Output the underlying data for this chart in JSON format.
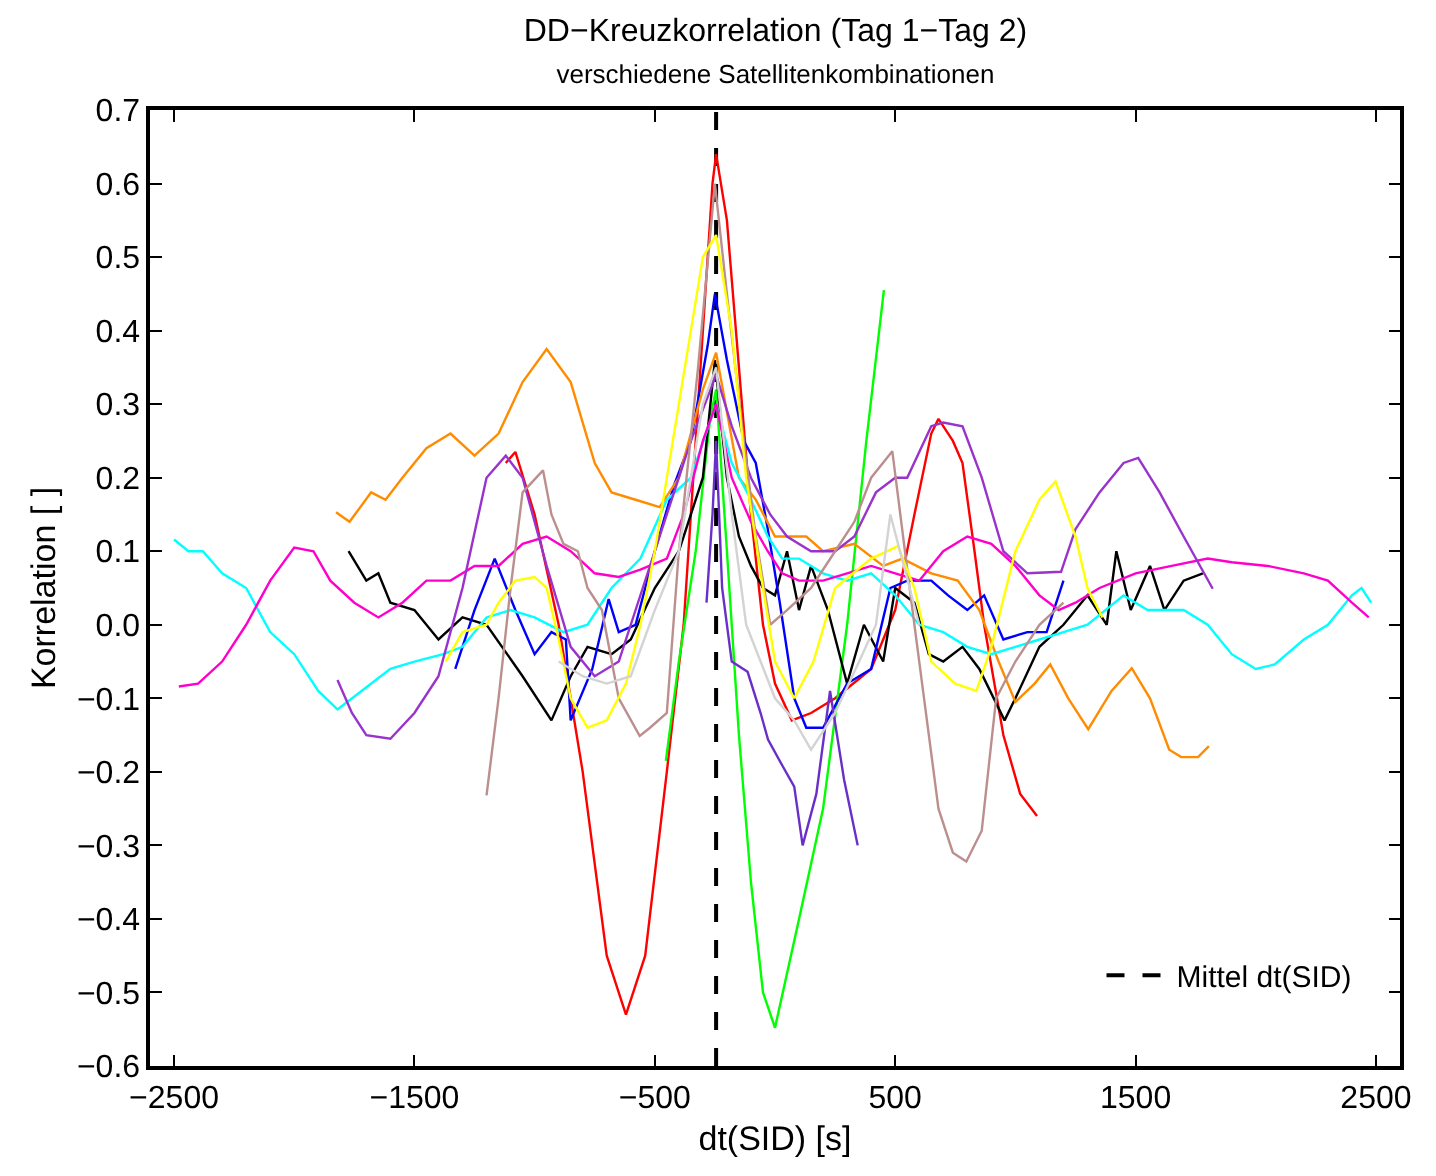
{
  "chart_data": {
    "type": "line",
    "title": "DD−Kreuzkorrelation (Tag 1−Tag 2)",
    "subtitle": "verschiedene Satellitenkombinationen",
    "xlabel": "dt(SID) [s]",
    "ylabel": "Korrelation [ ]",
    "xlim": [
      -2600,
      2600
    ],
    "ylim": [
      -0.6,
      0.7
    ],
    "xticks": [
      {
        "value": -2500,
        "label": "−2500"
      },
      {
        "value": -1500,
        "label": "−1500"
      },
      {
        "value": -500,
        "label": "−500"
      },
      500,
      1500,
      2500
    ],
    "yticks": [
      {
        "value": -0.6,
        "label": "−0.6"
      },
      {
        "value": -0.5,
        "label": "−0.5"
      },
      {
        "value": -0.4,
        "label": "−0.4"
      },
      {
        "value": -0.3,
        "label": "−0.3"
      },
      {
        "value": -0.2,
        "label": "−0.2"
      },
      {
        "value": -0.1,
        "label": "−0.1"
      },
      {
        "value": 0,
        "label": "0.0"
      },
      0.1,
      0.2,
      0.3,
      0.4,
      0.5,
      0.6,
      0.7
    ],
    "legend": "bottom right",
    "marker": "none",
    "line_style": "solid",
    "ref_lines": [
      {
        "axis": "x",
        "value": -245,
        "label": "Mittel dt(SID)",
        "color": "#000000",
        "line_style": "dashed"
      }
    ],
    "series": [
      {
        "color": "#ff0000",
        "x": [
          -1120,
          -1080,
          -1000,
          -900,
          -800,
          -700,
          -620,
          -540,
          -450,
          -380,
          -320,
          -260,
          -245,
          -200,
          -150,
          -100,
          -50,
          0,
          70,
          150,
          250,
          400,
          500,
          580,
          650,
          680,
          740,
          780,
          830,
          870,
          950,
          1020,
          1090
        ],
        "values": [
          0.22,
          0.235,
          0.15,
          0.0,
          -0.2,
          -0.45,
          -0.53,
          -0.45,
          -0.2,
          0.0,
          0.3,
          0.6,
          0.64,
          0.55,
          0.35,
          0.15,
          0.0,
          -0.08,
          -0.13,
          -0.12,
          -0.1,
          -0.06,
          0.02,
          0.15,
          0.26,
          0.28,
          0.25,
          0.22,
          0.1,
          0.0,
          -0.15,
          -0.23,
          -0.26
        ]
      },
      {
        "color": "#00ff00",
        "x": [
          -454,
          -400,
          -330,
          -270,
          -245,
          -200,
          -150,
          -100,
          -50,
          0,
          100,
          200,
          300,
          380,
          453
        ],
        "values": [
          -0.185,
          -0.05,
          0.1,
          0.28,
          0.32,
          0.1,
          -0.15,
          -0.35,
          -0.5,
          -0.548,
          -0.4,
          -0.25,
          0.0,
          0.25,
          0.455
        ]
      },
      {
        "color": "#000000",
        "x": [
          -1774,
          -1700,
          -1650,
          -1600,
          -1500,
          -1400,
          -1300,
          -1200,
          -1050,
          -930,
          -850,
          -780,
          -680,
          -600,
          -500,
          -400,
          -300,
          -250,
          -200,
          -150,
          -100,
          -50,
          0,
          50,
          100,
          150,
          220,
          300,
          370,
          450,
          500,
          580,
          640,
          700,
          780,
          850,
          955,
          1000,
          1100,
          1200,
          1300,
          1380,
          1420,
          1480,
          1560,
          1620,
          1700,
          1780
        ],
        "values": [
          0.1,
          0.06,
          0.07,
          0.03,
          0.02,
          -0.02,
          0.01,
          0.0,
          -0.07,
          -0.13,
          -0.07,
          -0.03,
          -0.04,
          -0.02,
          0.05,
          0.1,
          0.2,
          0.36,
          0.2,
          0.12,
          0.08,
          0.05,
          0.04,
          0.1,
          0.02,
          0.08,
          0.02,
          -0.08,
          0.0,
          -0.05,
          0.05,
          0.03,
          -0.04,
          -0.05,
          -0.03,
          -0.06,
          -0.13,
          -0.1,
          -0.03,
          0.0,
          0.04,
          0.0,
          0.1,
          0.02,
          0.08,
          0.02,
          0.06,
          0.07
        ]
      },
      {
        "color": "#0000ff",
        "x": [
          -1330,
          -1250,
          -1166,
          -1080,
          -1000,
          -930,
          -870,
          -850,
          -760,
          -692,
          -650,
          -580,
          -500,
          -420,
          -350,
          -280,
          -250,
          -200,
          -130,
          -80,
          -30,
          20,
          80,
          130,
          200,
          300,
          400,
          480,
          550,
          650,
          720,
          800,
          870,
          950,
          1050,
          1130,
          1200
        ],
        "values": [
          -0.06,
          0.02,
          0.09,
          0.02,
          -0.04,
          -0.01,
          -0.02,
          -0.13,
          -0.06,
          0.035,
          -0.01,
          0.0,
          0.1,
          0.19,
          0.25,
          0.38,
          0.45,
          0.36,
          0.25,
          0.22,
          0.13,
          0.03,
          -0.1,
          -0.14,
          -0.14,
          -0.08,
          -0.06,
          0.05,
          0.06,
          0.06,
          0.04,
          0.02,
          0.04,
          -0.02,
          -0.01,
          -0.01,
          0.06
        ]
      },
      {
        "color": "#ff8c00",
        "x": [
          -1826,
          -1770,
          -1680,
          -1620,
          -1550,
          -1450,
          -1350,
          -1250,
          -1150,
          -1050,
          -950,
          -850,
          -750,
          -680,
          -580,
          -480,
          -400,
          -300,
          -245,
          -150,
          -80,
          0,
          130,
          200,
          330,
          450,
          530,
          650,
          760,
          850,
          930,
          1000,
          1080,
          1145,
          1220,
          1303,
          1400,
          1484,
          1560,
          1640,
          1690,
          1760,
          1805
        ],
        "values": [
          0.153,
          0.14,
          0.18,
          0.17,
          0.2,
          0.24,
          0.26,
          0.23,
          0.26,
          0.33,
          0.375,
          0.33,
          0.22,
          0.18,
          0.17,
          0.16,
          0.2,
          0.32,
          0.37,
          0.2,
          0.17,
          0.12,
          0.12,
          0.1,
          0.11,
          0.08,
          0.09,
          0.07,
          0.06,
          0.02,
          -0.05,
          -0.105,
          -0.08,
          -0.054,
          -0.1,
          -0.142,
          -0.09,
          -0.059,
          -0.1,
          -0.17,
          -0.18,
          -0.18,
          -0.165
        ]
      },
      {
        "color": "#00ffff",
        "x": [
          -2500,
          -2440,
          -2380,
          -2300,
          -2200,
          -2100,
          -2000,
          -1900,
          -1820,
          -1720,
          -1600,
          -1500,
          -1380,
          -1300,
          -1200,
          -1100,
          -1000,
          -880,
          -780,
          -680,
          -560,
          -450,
          -350,
          -245,
          -180,
          -100,
          -30,
          30,
          100,
          200,
          300,
          400,
          500,
          600,
          700,
          800,
          900,
          1000,
          1100,
          1200,
          1300,
          1450,
          1550,
          1700,
          1800,
          1900,
          2000,
          2079,
          2200,
          2300,
          2400,
          2440,
          2480
        ],
        "values": [
          0.116,
          0.1,
          0.1,
          0.07,
          0.05,
          -0.01,
          -0.04,
          -0.09,
          -0.115,
          -0.09,
          -0.06,
          -0.05,
          -0.04,
          -0.03,
          0.01,
          0.02,
          0.01,
          -0.01,
          0.0,
          0.05,
          0.09,
          0.17,
          0.2,
          0.3,
          0.22,
          0.17,
          0.12,
          0.09,
          0.09,
          0.07,
          0.06,
          0.07,
          0.04,
          0.0,
          -0.01,
          -0.03,
          -0.04,
          -0.03,
          -0.02,
          -0.01,
          0.0,
          0.04,
          0.02,
          0.02,
          0.0,
          -0.04,
          -0.06,
          -0.054,
          -0.02,
          0.0,
          0.04,
          0.05,
          0.03
        ]
      },
      {
        "color": "#ff00cc",
        "x": [
          -2480,
          -2400,
          -2300,
          -2200,
          -2100,
          -2000,
          -1920,
          -1850,
          -1750,
          -1650,
          -1550,
          -1450,
          -1350,
          -1250,
          -1150,
          -1050,
          -950,
          -850,
          -750,
          -650,
          -560,
          -450,
          -380,
          -300,
          -245,
          -180,
          -100,
          -30,
          30,
          100,
          200,
          300,
          400,
          500,
          600,
          700,
          800,
          900,
          1000,
          1100,
          1180,
          1250,
          1350,
          1500,
          1650,
          1800,
          1900,
          2050,
          2200,
          2300,
          2400,
          2470
        ],
        "values": [
          -0.084,
          -0.08,
          -0.05,
          0.0,
          0.06,
          0.105,
          0.1,
          0.06,
          0.03,
          0.01,
          0.03,
          0.06,
          0.06,
          0.08,
          0.08,
          0.11,
          0.12,
          0.1,
          0.07,
          0.065,
          0.075,
          0.09,
          0.15,
          0.25,
          0.3,
          0.2,
          0.14,
          0.1,
          0.07,
          0.06,
          0.06,
          0.07,
          0.08,
          0.07,
          0.06,
          0.1,
          0.12,
          0.11,
          0.08,
          0.04,
          0.02,
          0.03,
          0.05,
          0.07,
          0.08,
          0.09,
          0.085,
          0.08,
          0.07,
          0.06,
          0.03,
          0.01
        ]
      },
      {
        "color": "#9933cc",
        "x": [
          -1820,
          -1760,
          -1700,
          -1600,
          -1500,
          -1400,
          -1300,
          -1200,
          -1120,
          -1050,
          -950,
          -850,
          -750,
          -650,
          -550,
          -450,
          -350,
          -245,
          -180,
          -100,
          -20,
          50,
          150,
          250,
          330,
          420,
          500,
          550,
          650,
          700,
          780,
          860,
          950,
          1050,
          1190,
          1250,
          1350,
          1450,
          1511,
          1600,
          1700,
          1821
        ],
        "values": [
          -0.075,
          -0.12,
          -0.15,
          -0.155,
          -0.12,
          -0.07,
          0.05,
          0.2,
          0.23,
          0.2,
          0.08,
          -0.03,
          -0.07,
          -0.05,
          0.05,
          0.15,
          0.25,
          0.34,
          0.27,
          0.2,
          0.15,
          0.12,
          0.1,
          0.1,
          0.12,
          0.18,
          0.2,
          0.2,
          0.27,
          0.275,
          0.27,
          0.2,
          0.1,
          0.07,
          0.072,
          0.13,
          0.18,
          0.22,
          0.227,
          0.18,
          0.12,
          0.049
        ]
      },
      {
        "color": "#6a2fc8",
        "x": [
          -285,
          -260,
          -245,
          -220,
          -180,
          -114,
          -60,
          -29,
          28,
          80,
          115,
          172,
          229,
          287,
          344
        ],
        "values": [
          0.03,
          0.15,
          0.25,
          0.05,
          -0.05,
          -0.064,
          -0.12,
          -0.156,
          -0.19,
          -0.22,
          -0.3,
          -0.23,
          -0.09,
          -0.21,
          -0.3
        ]
      },
      {
        "color": "#bc8f8f",
        "x": [
          -1200,
          -1150,
          -1100,
          -1050,
          -965,
          -930,
          -880,
          -820,
          -780,
          -720,
          -650,
          -563,
          -520,
          -450,
          -400,
          -320,
          -250,
          -200,
          -130,
          -80,
          -20,
          50,
          150,
          250,
          330,
          400,
          488,
          560,
          620,
          680,
          740,
          796,
          860,
          920,
          1000,
          1100,
          1200
        ],
        "values": [
          -0.232,
          -0.1,
          0.05,
          0.18,
          0.21,
          0.15,
          0.11,
          0.1,
          0.05,
          0.02,
          -0.1,
          -0.151,
          -0.14,
          -0.12,
          0.1,
          0.35,
          0.6,
          0.45,
          0.25,
          0.12,
          0.0,
          0.02,
          0.05,
          0.1,
          0.14,
          0.2,
          0.236,
          0.05,
          -0.1,
          -0.25,
          -0.31,
          -0.322,
          -0.28,
          -0.1,
          -0.05,
          0.0,
          0.03
        ]
      },
      {
        "color": "#ffff00",
        "x": [
          -1370,
          -1300,
          -1200,
          -1150,
          -1080,
          -1000,
          -950,
          -900,
          -850,
          -780,
          -700,
          -620,
          -560,
          -500,
          -400,
          -300,
          -245,
          -180,
          -120,
          -50,
          0,
          80,
          160,
          250,
          400,
          511,
          580,
          650,
          750,
          838,
          900,
          1000,
          1100,
          1167,
          1250,
          1300,
          1362
        ],
        "values": [
          -0.05,
          -0.01,
          0.0,
          0.03,
          0.06,
          0.065,
          0.05,
          -0.02,
          -0.1,
          -0.14,
          -0.13,
          -0.08,
          0.0,
          0.1,
          0.3,
          0.5,
          0.53,
          0.4,
          0.2,
          0.05,
          -0.05,
          -0.1,
          -0.05,
          0.05,
          0.09,
          0.107,
          0.05,
          -0.05,
          -0.08,
          -0.09,
          -0.03,
          0.1,
          0.17,
          0.195,
          0.12,
          0.05,
          0.01
        ]
      },
      {
        "color": "#d3d3d3",
        "x": [
          -900,
          -800,
          -700,
          -600,
          -500,
          -400,
          -300,
          -245,
          -180,
          -120,
          -60,
          0,
          80,
          150,
          250,
          350,
          420,
          480,
          520,
          600
        ],
        "values": [
          -0.05,
          -0.07,
          -0.08,
          -0.07,
          0.02,
          0.1,
          0.3,
          0.35,
          0.15,
          0.0,
          -0.05,
          -0.1,
          -0.13,
          -0.17,
          -0.12,
          -0.05,
          0.0,
          0.15,
          0.1,
          0.0
        ]
      }
    ]
  }
}
